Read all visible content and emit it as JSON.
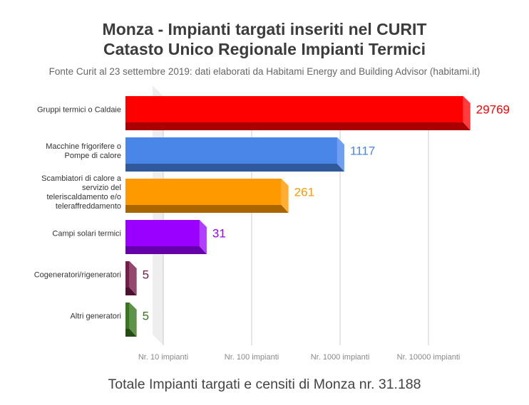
{
  "chart_data": {
    "type": "bar",
    "orientation": "horizontal",
    "title": "Monza - Impianti targati inseriti nel CURIT",
    "title_line2": "Catasto Unico Regionale Impianti Termici",
    "subtitle": "Fonte Curit al 23 settembre 2019: dati elaborati da Habitami Energy and Building Advisor (habitami.it)",
    "footer": "Totale Impianti targati e censiti di Monza nr. 31.188",
    "x_scale": "log",
    "xlim": [
      3.7,
      30000
    ],
    "x_ticks": [
      10,
      100,
      1000,
      10000
    ],
    "x_tick_labels": [
      "Nr. 10 impianti",
      "Nr. 100 impianti",
      "Nr. 1000 impianti",
      "Nr. 10000 impianti"
    ],
    "grid": true,
    "categories": [
      [
        "Gruppi termici o Caldaie"
      ],
      [
        "Macchine frigorifere o",
        "Pompe di calore"
      ],
      [
        "Scambiatori di calore a",
        "servizio del",
        "teleriscaldamento e/o",
        "teleraffreddamento"
      ],
      [
        "Campi solari termici"
      ],
      [
        "Cogeneratori/rigeneratori"
      ],
      [
        "Altri generatori"
      ]
    ],
    "values": [
      29769,
      1117,
      261,
      31,
      5,
      5
    ],
    "colors": [
      {
        "front": "#ff0000",
        "side": "#ff3b3b",
        "bottom": "#aa0000",
        "label": "#ff0000"
      },
      {
        "front": "#4a86e8",
        "side": "#6e9ff0",
        "bottom": "#30599b",
        "label": "#4a86e8"
      },
      {
        "front": "#ff9900",
        "side": "#ffad33",
        "bottom": "#a86500",
        "label": "#ff9900"
      },
      {
        "front": "#9900ff",
        "side": "#b040ff",
        "bottom": "#6600aa",
        "label": "#9900ff"
      },
      {
        "front": "#741b47",
        "side": "#944a6e",
        "bottom": "#4c1030",
        "label": "#741b47"
      },
      {
        "front": "#38761d",
        "side": "#5f934a",
        "bottom": "#234d12",
        "label": "#38761d"
      }
    ]
  }
}
